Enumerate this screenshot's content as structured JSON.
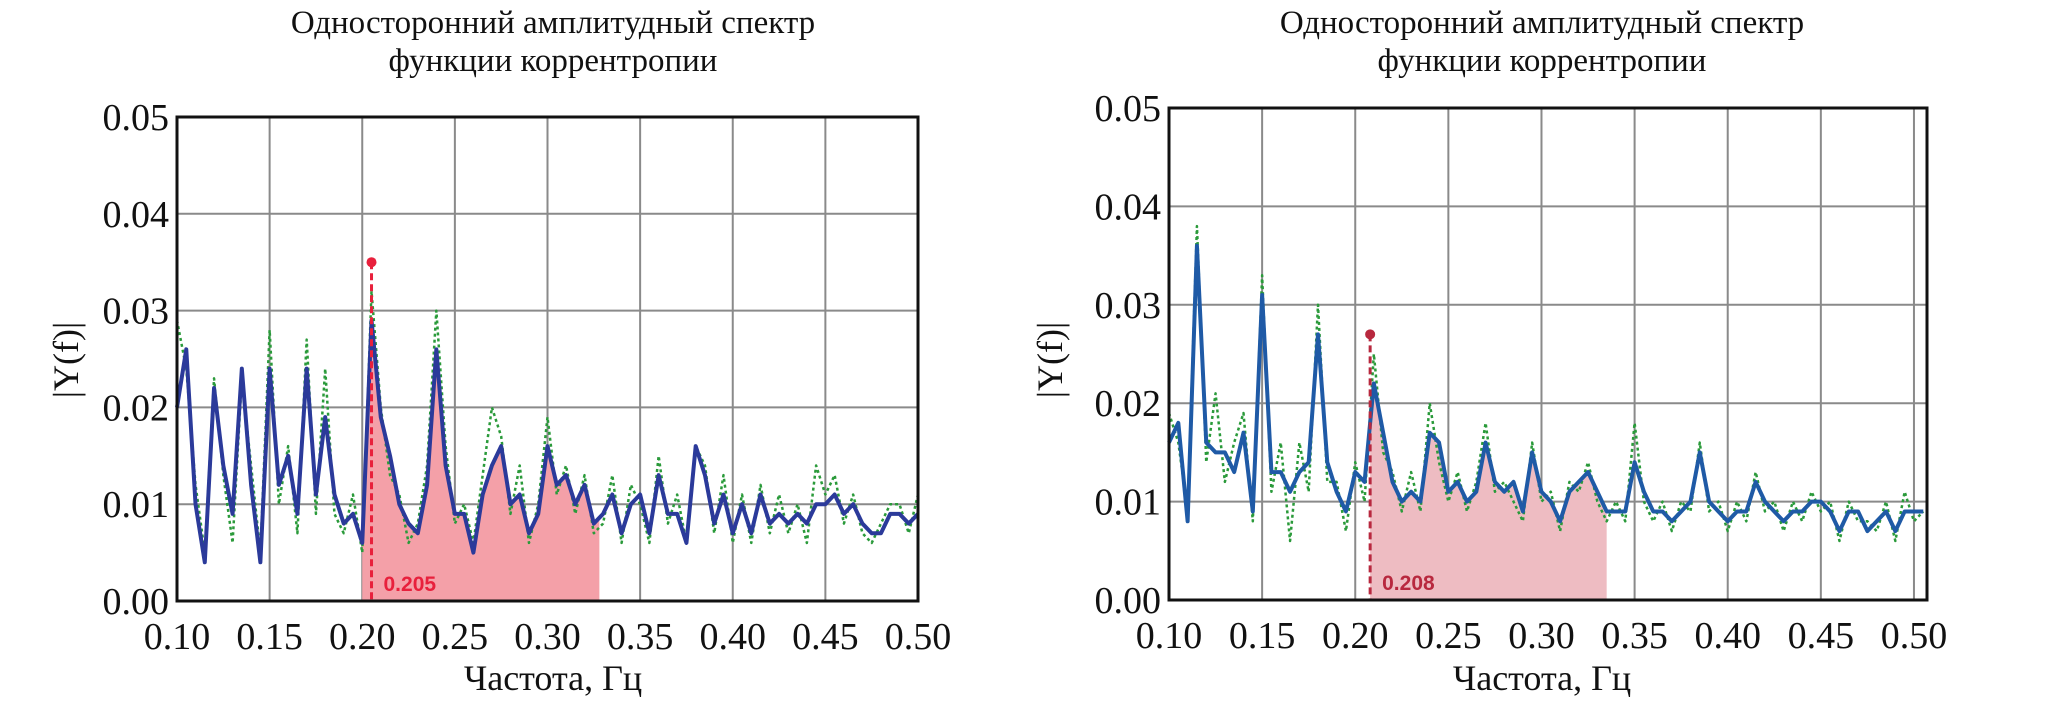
{
  "chart_data": [
    {
      "type": "line",
      "title_line1": "Односторонний амплитудный спектр",
      "title_line2": "функции коррентропии",
      "xlabel": "Частота, Гц",
      "ylabel": "|Y(f)|",
      "xlim": [
        0.1,
        0.5
      ],
      "ylim": [
        0,
        0.05
      ],
      "xticks": [
        "0.10",
        "0.15",
        "0.20",
        "0.25",
        "0.30",
        "0.35",
        "0.40",
        "0.45",
        "0.50"
      ],
      "yticks": [
        "0.00",
        "0.01",
        "0.02",
        "0.03",
        "0.04",
        "0.05"
      ],
      "grid": true,
      "x_start": 0.1,
      "x_step": 0.005,
      "series": [
        {
          "name": "spectrum-smoothed",
          "color": "#2b3a9a",
          "style": "solid",
          "values": [
            0.02,
            0.026,
            0.01,
            0.004,
            0.022,
            0.014,
            0.009,
            0.024,
            0.012,
            0.004,
            0.024,
            0.012,
            0.015,
            0.009,
            0.024,
            0.011,
            0.019,
            0.011,
            0.008,
            0.009,
            0.006,
            0.029,
            0.019,
            0.015,
            0.01,
            0.008,
            0.007,
            0.012,
            0.026,
            0.014,
            0.009,
            0.009,
            0.005,
            0.011,
            0.014,
            0.016,
            0.01,
            0.011,
            0.007,
            0.009,
            0.016,
            0.012,
            0.013,
            0.01,
            0.012,
            0.008,
            0.009,
            0.011,
            0.007,
            0.01,
            0.011,
            0.007,
            0.013,
            0.009,
            0.009,
            0.006,
            0.016,
            0.013,
            0.008,
            0.011,
            0.007,
            0.01,
            0.007,
            0.011,
            0.008,
            0.009,
            0.008,
            0.009,
            0.008,
            0.01,
            0.01,
            0.011,
            0.009,
            0.01,
            0.008,
            0.007,
            0.007,
            0.009,
            0.009,
            0.008,
            0.009
          ]
        },
        {
          "name": "spectrum-raw",
          "color": "#2a9a3a",
          "style": "dotted",
          "values": [
            0.029,
            0.024,
            0.012,
            0.005,
            0.023,
            0.013,
            0.006,
            0.023,
            0.014,
            0.005,
            0.028,
            0.01,
            0.016,
            0.007,
            0.027,
            0.009,
            0.024,
            0.009,
            0.007,
            0.011,
            0.005,
            0.032,
            0.02,
            0.013,
            0.011,
            0.006,
            0.008,
            0.014,
            0.03,
            0.016,
            0.008,
            0.01,
            0.006,
            0.013,
            0.02,
            0.017,
            0.009,
            0.014,
            0.006,
            0.01,
            0.019,
            0.011,
            0.014,
            0.009,
            0.013,
            0.007,
            0.008,
            0.013,
            0.006,
            0.012,
            0.01,
            0.006,
            0.015,
            0.008,
            0.011,
            0.006,
            0.016,
            0.014,
            0.007,
            0.013,
            0.006,
            0.011,
            0.006,
            0.012,
            0.007,
            0.011,
            0.007,
            0.01,
            0.006,
            0.014,
            0.011,
            0.013,
            0.008,
            0.011,
            0.007,
            0.006,
            0.008,
            0.01,
            0.01,
            0.007,
            0.011
          ]
        }
      ],
      "highlight": {
        "x_from": 0.2,
        "x_to": 0.328,
        "fill": "#f4a0a8"
      },
      "marker": {
        "x": 0.205,
        "y": 0.035,
        "label": "0.205",
        "color": "#e8203c"
      }
    },
    {
      "type": "line",
      "title_line1": "Односторонний амплитудный спектр",
      "title_line2": "функции коррентропии",
      "xlabel": "Частота, Гц",
      "ylabel": "|Y(f)|",
      "xlim": [
        0.1,
        0.507
      ],
      "ylim": [
        0,
        0.05
      ],
      "xticks": [
        "0.10",
        "0.15",
        "0.20",
        "0.25",
        "0.30",
        "0.35",
        "0.40",
        "0.45",
        "0.50"
      ],
      "yticks": [
        "0.00",
        "0.01",
        "0.02",
        "0.03",
        "0.04",
        "0.05"
      ],
      "grid": true,
      "x_start": 0.1,
      "x_step": 0.005,
      "series": [
        {
          "name": "spectrum-smoothed",
          "color": "#1f5aa6",
          "style": "solid",
          "values": [
            0.016,
            0.018,
            0.008,
            0.036,
            0.016,
            0.015,
            0.015,
            0.013,
            0.017,
            0.009,
            0.031,
            0.013,
            0.013,
            0.011,
            0.013,
            0.014,
            0.027,
            0.014,
            0.011,
            0.009,
            0.013,
            0.012,
            0.022,
            0.017,
            0.012,
            0.01,
            0.011,
            0.01,
            0.017,
            0.016,
            0.011,
            0.012,
            0.01,
            0.011,
            0.016,
            0.012,
            0.011,
            0.012,
            0.009,
            0.015,
            0.011,
            0.01,
            0.008,
            0.011,
            0.012,
            0.013,
            0.011,
            0.009,
            0.009,
            0.009,
            0.014,
            0.011,
            0.009,
            0.009,
            0.008,
            0.009,
            0.01,
            0.015,
            0.01,
            0.009,
            0.008,
            0.009,
            0.009,
            0.012,
            0.01,
            0.009,
            0.008,
            0.009,
            0.009,
            0.01,
            0.01,
            0.009,
            0.007,
            0.009,
            0.009,
            0.007,
            0.008,
            0.009,
            0.007,
            0.009,
            0.009,
            0.009
          ]
        },
        {
          "name": "spectrum-raw",
          "color": "#2a9a3a",
          "style": "dotted",
          "values": [
            0.019,
            0.016,
            0.009,
            0.038,
            0.014,
            0.021,
            0.012,
            0.016,
            0.019,
            0.008,
            0.033,
            0.011,
            0.016,
            0.006,
            0.016,
            0.011,
            0.03,
            0.012,
            0.012,
            0.007,
            0.014,
            0.01,
            0.025,
            0.015,
            0.013,
            0.009,
            0.013,
            0.009,
            0.02,
            0.014,
            0.01,
            0.013,
            0.009,
            0.012,
            0.018,
            0.011,
            0.012,
            0.01,
            0.008,
            0.016,
            0.01,
            0.011,
            0.007,
            0.012,
            0.011,
            0.014,
            0.01,
            0.008,
            0.01,
            0.008,
            0.018,
            0.01,
            0.008,
            0.01,
            0.007,
            0.01,
            0.009,
            0.016,
            0.009,
            0.01,
            0.007,
            0.01,
            0.008,
            0.013,
            0.009,
            0.01,
            0.007,
            0.01,
            0.008,
            0.011,
            0.009,
            0.01,
            0.006,
            0.01,
            0.008,
            0.008,
            0.007,
            0.01,
            0.006,
            0.011,
            0.008,
            0.009
          ]
        }
      ],
      "highlight": {
        "x_from": 0.208,
        "x_to": 0.335,
        "fill": "#eebcc2"
      },
      "marker": {
        "x": 0.208,
        "y": 0.027,
        "label": "0.208",
        "color": "#b8283e"
      }
    }
  ]
}
